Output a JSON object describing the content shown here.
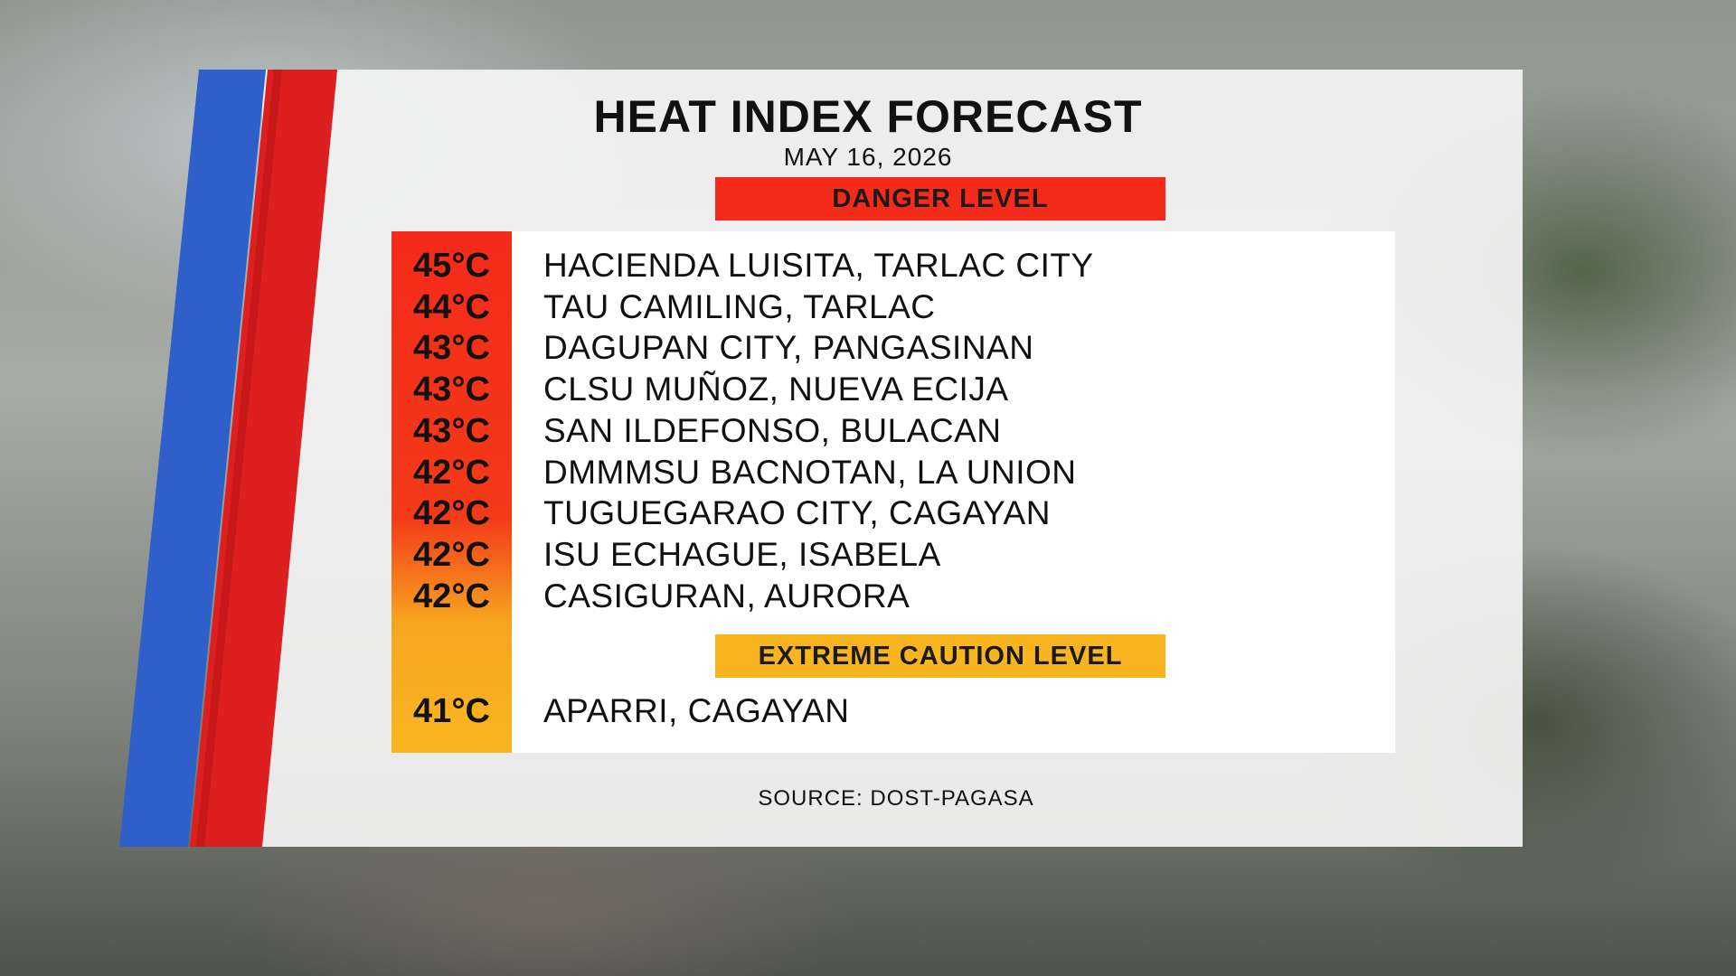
{
  "header": {
    "title": "HEAT INDEX FORECAST",
    "date": "MAY 16, 2026"
  },
  "sections": [
    {
      "label": "DANGER LEVEL",
      "color": "#f42a1a",
      "rows": [
        {
          "temp": "45°C",
          "location": "HACIENDA LUISITA, TARLAC CITY"
        },
        {
          "temp": "44°C",
          "location": "TAU CAMILING, TARLAC"
        },
        {
          "temp": "43°C",
          "location": "DAGUPAN CITY, PANGASINAN"
        },
        {
          "temp": "43°C",
          "location": "CLSU MUÑOZ, NUEVA ECIJA"
        },
        {
          "temp": "43°C",
          "location": "SAN ILDEFONSO, BULACAN"
        },
        {
          "temp": "42°C",
          "location": "DMMMSU BACNOTAN, LA UNION"
        },
        {
          "temp": "42°C",
          "location": "TUGUEGARAO CITY, CAGAYAN"
        },
        {
          "temp": "42°C",
          "location": "ISU ECHAGUE, ISABELA"
        },
        {
          "temp": "42°C",
          "location": "CASIGURAN, AURORA"
        }
      ]
    },
    {
      "label": "EXTREME CAUTION LEVEL",
      "color": "#f9b520",
      "rows": [
        {
          "temp": "41°C",
          "location": "APARRI, CAGAYAN"
        }
      ]
    }
  ],
  "footer": {
    "source": "SOURCE: DOST-PAGASA"
  }
}
